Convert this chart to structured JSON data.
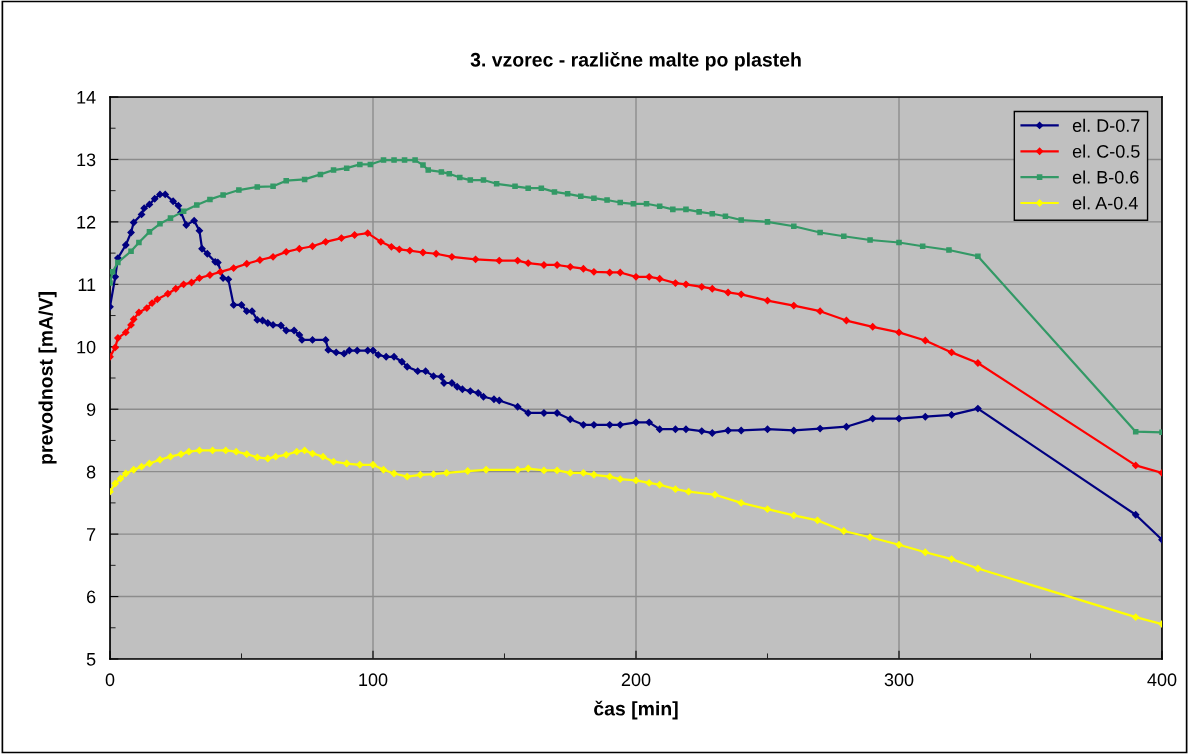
{
  "chart_data": {
    "type": "line",
    "title": "3. vzorec - različne malte po plasteh",
    "xlabel": "čas [min]",
    "ylabel": "prevodnost [mA/V]",
    "xlim": [
      0,
      400
    ],
    "ylim": [
      5,
      14
    ],
    "xticks": [
      0,
      {
        "value": 50,
        "label": null
      },
      100,
      {
        "value": 150,
        "label": null
      },
      200,
      {
        "value": 250,
        "label": null
      },
      300,
      {
        "value": 350,
        "label": null
      },
      400
    ],
    "yticks": [
      5,
      {
        "value": 5.5,
        "label": null
      },
      6,
      {
        "value": 6.5,
        "label": null
      },
      7,
      {
        "value": 7.5,
        "label": null
      },
      8,
      {
        "value": 8.5,
        "label": null
      },
      9,
      {
        "value": 9.5,
        "label": null
      },
      10,
      {
        "value": 10.5,
        "label": null
      },
      11,
      {
        "value": 11.5,
        "label": null
      },
      12,
      {
        "value": 12.5,
        "label": null
      },
      13,
      {
        "value": 13.5,
        "label": null
      },
      14
    ],
    "grid": true,
    "legend": "top right",
    "line_style": "solid",
    "series": [
      {
        "name": "el. D-0.7",
        "color": "#000080",
        "marker": "diamond",
        "x": [
          0,
          2,
          3,
          6,
          8,
          9,
          12,
          13,
          15,
          17,
          19,
          21,
          24,
          26,
          27,
          29,
          32,
          34,
          35,
          37,
          40,
          41,
          43,
          45,
          47,
          50,
          52,
          54,
          56,
          58,
          60,
          62,
          65,
          67,
          70,
          72,
          73,
          77,
          82,
          83,
          86,
          89,
          91,
          94,
          98,
          100,
          102,
          105,
          108,
          111,
          113,
          117,
          120,
          123,
          126,
          127,
          130,
          132,
          134,
          137,
          140,
          142,
          146,
          148,
          155,
          159,
          165,
          170,
          175,
          180,
          184,
          190,
          194,
          200,
          205,
          209,
          215,
          219,
          225,
          229,
          235,
          240,
          250,
          260,
          270,
          280,
          290,
          300,
          310,
          320,
          330,
          390,
          400
        ],
        "values": [
          10.64,
          11.12,
          11.42,
          11.63,
          11.83,
          11.99,
          12.12,
          12.22,
          12.28,
          12.37,
          12.44,
          12.44,
          12.33,
          12.26,
          12.15,
          11.95,
          12.02,
          11.86,
          11.57,
          11.49,
          11.36,
          11.35,
          11.1,
          11.08,
          10.67,
          10.67,
          10.57,
          10.57,
          10.43,
          10.42,
          10.38,
          10.35,
          10.34,
          10.26,
          10.26,
          10.19,
          10.11,
          10.11,
          10.11,
          9.95,
          9.91,
          9.89,
          9.94,
          9.94,
          9.94,
          9.94,
          9.87,
          9.84,
          9.84,
          9.76,
          9.68,
          9.61,
          9.61,
          9.53,
          9.52,
          9.42,
          9.42,
          9.36,
          9.32,
          9.29,
          9.26,
          9.2,
          9.16,
          9.14,
          9.04,
          8.94,
          8.94,
          8.94,
          8.84,
          8.75,
          8.75,
          8.75,
          8.75,
          8.79,
          8.79,
          8.68,
          8.68,
          8.68,
          8.65,
          8.62,
          8.66,
          8.66,
          8.68,
          8.66,
          8.69,
          8.72,
          8.85,
          8.85,
          8.88,
          8.91,
          9.01,
          7.31,
          6.91
        ]
      },
      {
        "name": "el. C-0.5",
        "color": "#ff0000",
        "marker": "diamond",
        "x": [
          0,
          2,
          3,
          6,
          8,
          9,
          11,
          14,
          16,
          18,
          22,
          25,
          28,
          31,
          34,
          38,
          42,
          47,
          52,
          57,
          62,
          67,
          72,
          77,
          82,
          88,
          93,
          98,
          103,
          107,
          110,
          114,
          119,
          124,
          130,
          139,
          148,
          155,
          159,
          165,
          170,
          175,
          180,
          184,
          190,
          194,
          200,
          205,
          209,
          215,
          219,
          225,
          229,
          235,
          240,
          250,
          260,
          270,
          280,
          290,
          300,
          310,
          320,
          330,
          390,
          400
        ],
        "values": [
          9.84,
          9.99,
          10.14,
          10.23,
          10.35,
          10.44,
          10.55,
          10.62,
          10.7,
          10.76,
          10.85,
          10.93,
          11.0,
          11.03,
          11.1,
          11.15,
          11.2,
          11.26,
          11.33,
          11.39,
          11.44,
          11.52,
          11.57,
          11.61,
          11.68,
          11.74,
          11.79,
          11.82,
          11.68,
          11.6,
          11.56,
          11.54,
          11.51,
          11.49,
          11.44,
          11.4,
          11.38,
          11.38,
          11.34,
          11.31,
          11.31,
          11.28,
          11.25,
          11.2,
          11.19,
          11.19,
          11.12,
          11.12,
          11.09,
          11.02,
          11.0,
          10.96,
          10.93,
          10.87,
          10.84,
          10.74,
          10.66,
          10.57,
          10.42,
          10.32,
          10.23,
          10.1,
          9.91,
          9.74,
          8.1,
          7.98
        ]
      },
      {
        "name": "el. B-0.6",
        "color": "#339966",
        "marker": "square",
        "x": [
          0,
          1,
          3,
          8,
          11,
          15,
          19,
          23,
          28,
          33,
          38,
          43,
          49,
          56,
          62,
          67,
          74,
          80,
          85,
          90,
          95,
          99,
          104,
          108,
          112,
          116,
          119,
          121,
          126,
          129,
          133,
          137,
          142,
          147,
          154,
          159,
          164,
          169,
          174,
          179,
          184,
          189,
          194,
          199,
          204,
          209,
          214,
          219,
          224,
          229,
          234,
          240,
          250,
          260,
          270,
          279,
          289,
          300,
          309,
          319,
          330,
          390,
          400
        ],
        "values": [
          11.02,
          11.2,
          11.35,
          11.53,
          11.67,
          11.84,
          11.97,
          12.06,
          12.17,
          12.27,
          12.36,
          12.43,
          12.51,
          12.56,
          12.57,
          12.66,
          12.68,
          12.76,
          12.83,
          12.86,
          12.92,
          12.92,
          12.99,
          12.99,
          12.99,
          12.99,
          12.91,
          12.83,
          12.8,
          12.77,
          12.71,
          12.67,
          12.67,
          12.61,
          12.57,
          12.54,
          12.54,
          12.48,
          12.45,
          12.41,
          12.38,
          12.35,
          12.31,
          12.29,
          12.29,
          12.25,
          12.2,
          12.2,
          12.16,
          12.13,
          12.09,
          12.03,
          12.0,
          11.93,
          11.83,
          11.77,
          11.71,
          11.67,
          11.61,
          11.55,
          11.45,
          8.64,
          8.63
        ]
      },
      {
        "name": "el. A-0.4",
        "color": "#ffff00",
        "marker": "diamond",
        "x": [
          0,
          2,
          4,
          6,
          9,
          12,
          15,
          19,
          23,
          27,
          30,
          34,
          39,
          44,
          48,
          52,
          56,
          60,
          63,
          67,
          71,
          74,
          77,
          81,
          85,
          90,
          95,
          100,
          104,
          108,
          113,
          118,
          123,
          128,
          136,
          143,
          155,
          159,
          165,
          170,
          175,
          180,
          184,
          190,
          194,
          200,
          205,
          209,
          215,
          220,
          230,
          240,
          250,
          260,
          269,
          279,
          289,
          300,
          310,
          320,
          330,
          390,
          400
        ],
        "values": [
          7.68,
          7.81,
          7.89,
          7.97,
          8.03,
          8.08,
          8.13,
          8.19,
          8.24,
          8.28,
          8.32,
          8.34,
          8.34,
          8.34,
          8.32,
          8.28,
          8.23,
          8.21,
          8.24,
          8.27,
          8.32,
          8.34,
          8.29,
          8.24,
          8.16,
          8.13,
          8.11,
          8.11,
          8.03,
          7.97,
          7.92,
          7.95,
          7.96,
          7.98,
          8.01,
          8.03,
          8.03,
          8.05,
          8.02,
          8.02,
          7.98,
          7.98,
          7.95,
          7.92,
          7.88,
          7.86,
          7.82,
          7.79,
          7.72,
          7.68,
          7.63,
          7.5,
          7.4,
          7.3,
          7.22,
          7.05,
          6.95,
          6.83,
          6.71,
          6.6,
          6.45,
          5.67,
          5.56
        ]
      }
    ]
  }
}
